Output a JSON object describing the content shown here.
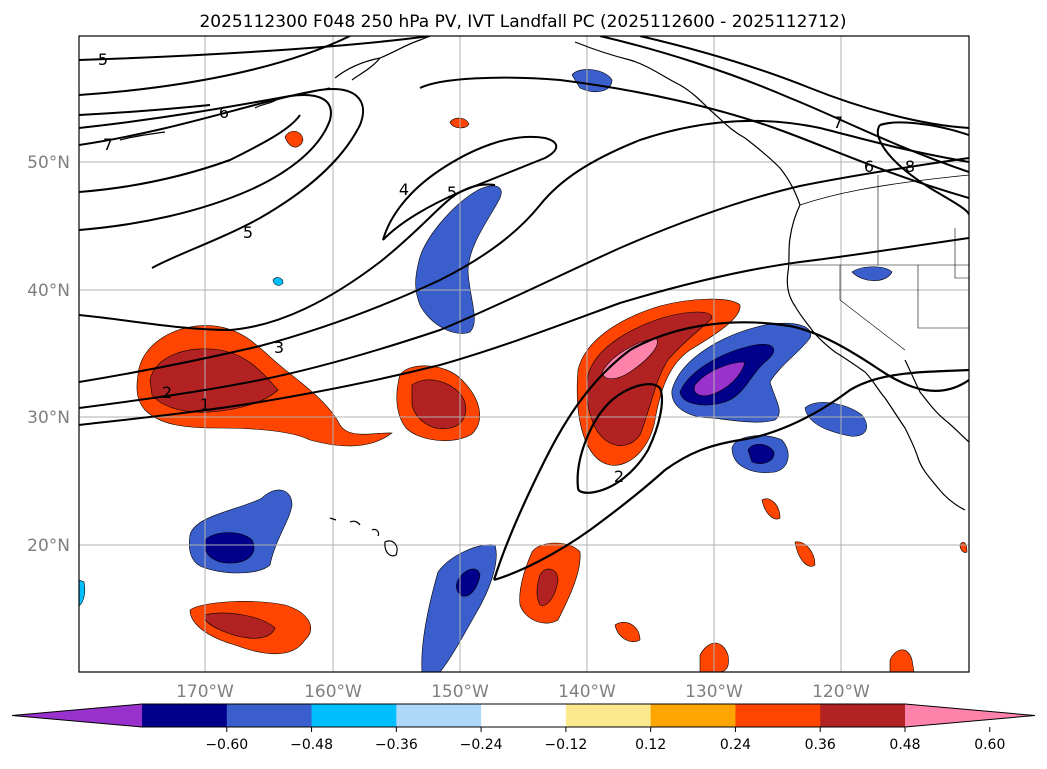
{
  "title": "2025112300 F048 250 hPa PV, IVT Landfall PC (2025112600 - 2025112712)",
  "map": {
    "lat_labels": [
      "50°N",
      "40°N",
      "30°N",
      "20°N"
    ],
    "lon_labels": [
      "170°W",
      "160°W",
      "150°W",
      "140°W",
      "130°W",
      "120°W"
    ],
    "pv_contour_labels": [
      "5",
      "6",
      "7",
      "5",
      "4",
      "5",
      "3",
      "2",
      "1",
      "7",
      "6",
      "8",
      "2"
    ]
  },
  "colorbar": {
    "colors": [
      "#9932cc",
      "#00008b",
      "#3a5fcd",
      "#00bfff",
      "#add8f7",
      "#ffffff",
      "#fce98e",
      "#ffa500",
      "#ff4500",
      "#b22222",
      "#ff82ab"
    ],
    "tick_labels": [
      "−0.60",
      "−0.48",
      "−0.36",
      "−0.24",
      "−0.12",
      "0.12",
      "0.24",
      "0.36",
      "0.48",
      "0.60"
    ]
  }
}
